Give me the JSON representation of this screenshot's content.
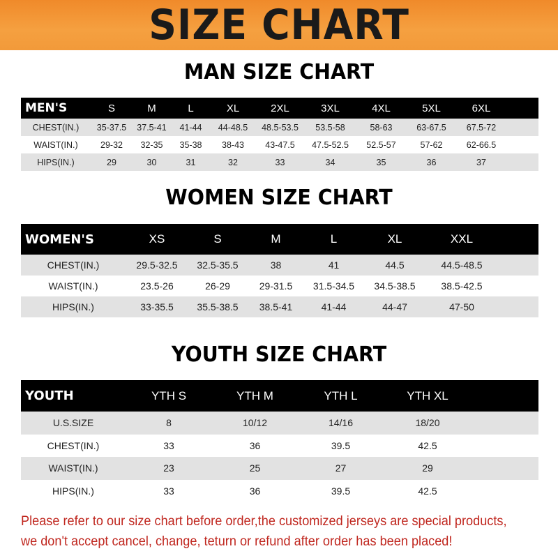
{
  "banner_title": "SIZE CHART",
  "men": {
    "title": "MAN SIZE CHART",
    "header": [
      "MEN'S",
      "S",
      "M",
      "L",
      "XL",
      "2XL",
      "3XL",
      "4XL",
      "5XL",
      "6XL"
    ],
    "rows": [
      [
        "CHEST(IN.)",
        "35-37.5",
        "37.5-41",
        "41-44",
        "44-48.5",
        "48.5-53.5",
        "53.5-58",
        "58-63",
        "63-67.5",
        "67.5-72"
      ],
      [
        "WAIST(IN.)",
        "29-32",
        "32-35",
        "35-38",
        "38-43",
        "43-47.5",
        "47.5-52.5",
        "52.5-57",
        "57-62",
        "62-66.5"
      ],
      [
        "HIPS(IN.)",
        "29",
        "30",
        "31",
        "32",
        "33",
        "34",
        "35",
        "36",
        "37"
      ]
    ]
  },
  "women": {
    "title": "WOMEN SIZE CHART",
    "header": [
      "WOMEN'S",
      "XS",
      "S",
      "M",
      "L",
      "XL",
      "XXL"
    ],
    "rows": [
      [
        "CHEST(IN.)",
        "29.5-32.5",
        "32.5-35.5",
        "38",
        "41",
        "44.5",
        "44.5-48.5"
      ],
      [
        "WAIST(IN.)",
        "23.5-26",
        "26-29",
        "29-31.5",
        "31.5-34.5",
        "34.5-38.5",
        "38.5-42.5"
      ],
      [
        "HIPS(IN.)",
        "33-35.5",
        "35.5-38.5",
        "38.5-41",
        "41-44",
        "44-47",
        "47-50"
      ]
    ]
  },
  "youth": {
    "title": "YOUTH SIZE CHART",
    "header": [
      "YOUTH",
      "YTH S",
      "YTH M",
      "YTH L",
      "YTH XL"
    ],
    "rows": [
      [
        "U.S.SIZE",
        "8",
        "10/12",
        "14/16",
        "18/20"
      ],
      [
        "CHEST(IN.)",
        "33",
        "36",
        "39.5",
        "42.5"
      ],
      [
        "WAIST(IN.)",
        "23",
        "25",
        "27",
        "29"
      ],
      [
        "HIPS(IN.)",
        "33",
        "36",
        "39.5",
        "42.5"
      ]
    ]
  },
  "notice": {
    "line1": "Please refer to our size chart before order,the customized jerseys are special products,",
    "line2": "we don't accept cancel, change, teturn or refund after order has been placed!"
  },
  "colors": {
    "banner": "#f39436",
    "header_row": "#000000",
    "stripe": "#e2e2e2",
    "notice": "#c0271f"
  }
}
